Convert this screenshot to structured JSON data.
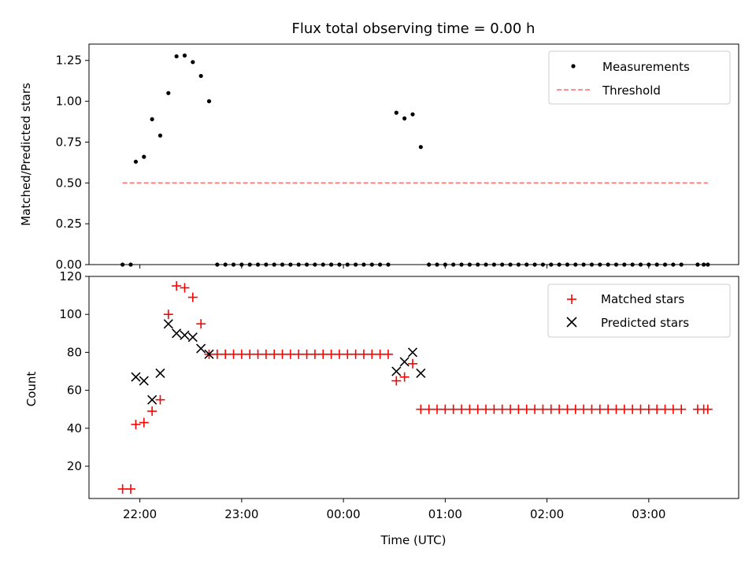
{
  "figure": {
    "title": "Flux total observing time = 0.00 h",
    "xlabel": "Time (UTC)"
  },
  "chart_data": [
    {
      "type": "scatter",
      "ylabel": "Matched/Predicted stars",
      "ylim": [
        0,
        1.35
      ],
      "yticks": [
        "0.00",
        "0.25",
        "0.50",
        "0.75",
        "1.00",
        "1.25"
      ],
      "ytick_values": [
        0,
        0.25,
        0.5,
        0.75,
        1.0,
        1.25
      ],
      "xlim": [
        "21:30",
        "03:53"
      ],
      "x_unit": "hours_UTC_continued_after_midnight",
      "legend": {
        "location": "top-right",
        "entries": [
          "Measurements",
          "Threshold"
        ]
      },
      "series": [
        {
          "name": "Measurements",
          "marker": "dot",
          "color": "#000000",
          "x": [
            21.83,
            21.91,
            21.96,
            22.04,
            22.12,
            22.2,
            22.28,
            22.36,
            22.44,
            22.52,
            22.6,
            22.68,
            22.76,
            22.84,
            22.92,
            23.0,
            23.08,
            23.16,
            23.24,
            23.32,
            23.4,
            23.48,
            23.56,
            23.64,
            23.72,
            23.8,
            23.88,
            23.96,
            24.04,
            24.12,
            24.2,
            24.28,
            24.36,
            24.44,
            24.52,
            24.6,
            24.68,
            24.76,
            24.84,
            24.92,
            25.0,
            25.08,
            25.16,
            25.24,
            25.32,
            25.4,
            25.48,
            25.56,
            25.64,
            25.72,
            25.8,
            25.88,
            25.96,
            26.04,
            26.12,
            26.2,
            26.28,
            26.36,
            26.44,
            26.52,
            26.6,
            26.68,
            26.76,
            26.84,
            26.92,
            27.0,
            27.08,
            27.16,
            27.24,
            27.32,
            27.48,
            27.54,
            27.58
          ],
          "y": [
            0,
            0,
            0.63,
            0.66,
            0.89,
            0.79,
            1.05,
            1.275,
            1.28,
            1.24,
            1.155,
            1.0,
            0,
            0,
            0,
            0,
            0,
            0,
            0,
            0,
            0,
            0,
            0,
            0,
            0,
            0,
            0,
            0,
            0,
            0,
            0,
            0,
            0,
            0,
            0.93,
            0.895,
            0.92,
            0.72,
            0,
            0,
            0,
            0,
            0,
            0,
            0,
            0,
            0,
            0,
            0,
            0,
            0,
            0,
            0,
            0,
            0,
            0,
            0,
            0,
            0,
            0,
            0,
            0,
            0,
            0,
            0,
            0,
            0,
            0,
            0,
            0,
            0,
            0,
            0
          ]
        },
        {
          "name": "Threshold",
          "style": "dashed",
          "color": "#ff7f7f",
          "x": [
            21.83,
            27.58
          ],
          "y": [
            0.5,
            0.5
          ]
        }
      ]
    },
    {
      "type": "scatter",
      "ylabel": "Count",
      "ylim": [
        3,
        120
      ],
      "yticks": [
        "20",
        "40",
        "60",
        "80",
        "100",
        "120"
      ],
      "ytick_values": [
        20,
        40,
        60,
        80,
        100,
        120
      ],
      "xticks": [
        "22:00",
        "23:00",
        "00:00",
        "01:00",
        "02:00",
        "03:00"
      ],
      "xtick_values": [
        22,
        23,
        24,
        25,
        26,
        27
      ],
      "legend": {
        "location": "top-right",
        "entries": [
          "Matched stars",
          "Predicted stars"
        ]
      },
      "series": [
        {
          "name": "Matched stars",
          "marker": "plus",
          "color": "#ff0000",
          "x": [
            21.83,
            21.91,
            21.96,
            22.04,
            22.12,
            22.2,
            22.28,
            22.36,
            22.44,
            22.52,
            22.6,
            22.68,
            22.76,
            22.84,
            22.92,
            23.0,
            23.08,
            23.16,
            23.24,
            23.32,
            23.4,
            23.48,
            23.56,
            23.64,
            23.72,
            23.8,
            23.88,
            23.96,
            24.04,
            24.12,
            24.2,
            24.28,
            24.36,
            24.44,
            24.52,
            24.6,
            24.68,
            24.76,
            24.84,
            24.92,
            25.0,
            25.08,
            25.16,
            25.24,
            25.32,
            25.4,
            25.48,
            25.56,
            25.64,
            25.72,
            25.8,
            25.88,
            25.96,
            26.04,
            26.12,
            26.2,
            26.28,
            26.36,
            26.44,
            26.52,
            26.6,
            26.68,
            26.76,
            26.84,
            26.92,
            27.0,
            27.08,
            27.16,
            27.24,
            27.32,
            27.48,
            27.54,
            27.58
          ],
          "y": [
            8,
            8,
            42,
            43,
            49,
            55,
            100,
            115,
            114,
            109,
            95,
            79,
            79,
            79,
            79,
            79,
            79,
            79,
            79,
            79,
            79,
            79,
            79,
            79,
            79,
            79,
            79,
            79,
            79,
            79,
            79,
            79,
            79,
            79,
            65,
            67,
            74,
            50,
            50,
            50,
            50,
            50,
            50,
            50,
            50,
            50,
            50,
            50,
            50,
            50,
            50,
            50,
            50,
            50,
            50,
            50,
            50,
            50,
            50,
            50,
            50,
            50,
            50,
            50,
            50,
            50,
            50,
            50,
            50,
            50,
            50,
            50,
            50
          ]
        },
        {
          "name": "Predicted stars",
          "marker": "x",
          "color": "#000000",
          "x": [
            21.96,
            22.04,
            22.12,
            22.2,
            22.28,
            22.36,
            22.44,
            22.52,
            22.6,
            22.68,
            24.52,
            24.6,
            24.68,
            24.76
          ],
          "y": [
            67,
            65,
            55,
            69,
            95,
            90,
            89,
            88,
            82,
            79,
            70,
            75,
            80,
            69
          ]
        }
      ]
    }
  ]
}
